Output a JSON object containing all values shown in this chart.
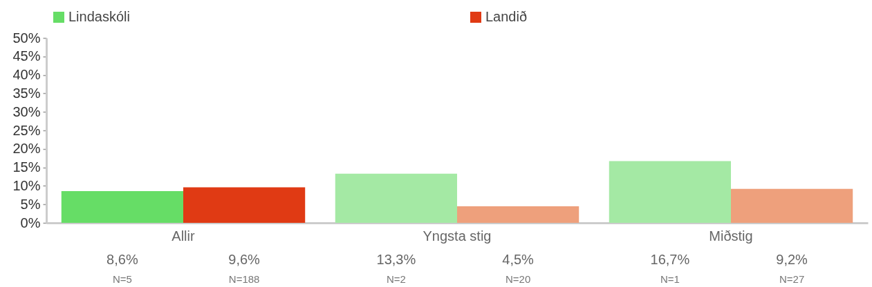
{
  "chart_data": {
    "type": "bar",
    "categories": [
      "Allir",
      "Yngsta stig",
      "Miðstig"
    ],
    "series": [
      {
        "name": "Lindaskóli",
        "color": "#66dd66",
        "colors": [
          "#66dd66",
          "#a4e9a4",
          "#a4e9a4"
        ],
        "values": [
          8.6,
          13.3,
          16.7
        ],
        "value_labels": [
          "8,6%\nN=5",
          "13,3%\nN=2",
          "16,7%\nN=1"
        ]
      },
      {
        "name": "Landið",
        "color": "#e03a14",
        "colors": [
          "#e03a14",
          "#eea07c",
          "#eea07c"
        ],
        "values": [
          9.6,
          4.5,
          9.2
        ],
        "value_labels": [
          "9,6%\nN=188",
          "4,5%\nN=20",
          "9,2%\nN=27"
        ]
      }
    ],
    "ylim": [
      0,
      50
    ],
    "yticks": [
      {
        "value": 0,
        "label": "0%"
      },
      {
        "value": 5,
        "label": "5%"
      },
      {
        "value": 10,
        "label": "10%"
      },
      {
        "value": 15,
        "label": "15%"
      },
      {
        "value": 20,
        "label": "20%"
      },
      {
        "value": 25,
        "label": "25%"
      },
      {
        "value": 30,
        "label": "30%"
      },
      {
        "value": 35,
        "label": "35%"
      },
      {
        "value": 40,
        "label": "40%"
      },
      {
        "value": 45,
        "label": "45%"
      },
      {
        "value": 50,
        "label": "50%"
      }
    ],
    "legend": "top"
  }
}
